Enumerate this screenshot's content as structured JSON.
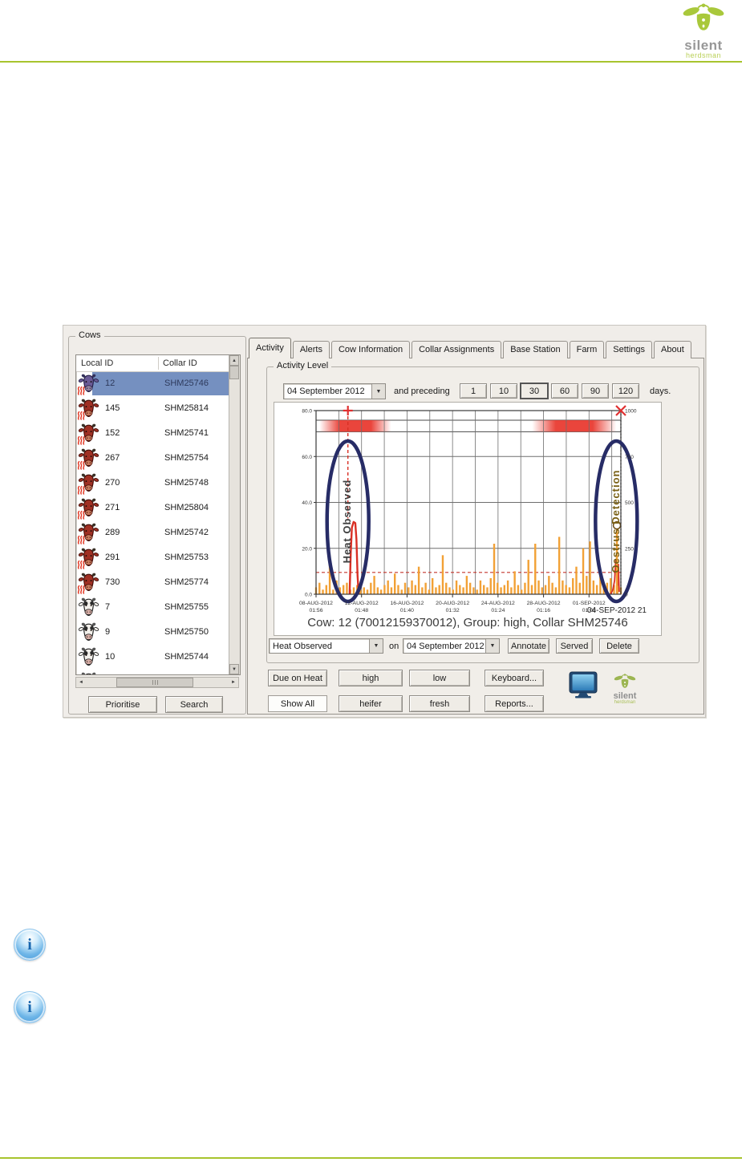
{
  "page": {
    "rule_color": "#a7c42e"
  },
  "logo": {
    "word1": "silent",
    "word2": "herdsman",
    "green": "#a9c83b",
    "gray": "#979797"
  },
  "info_icon": {
    "char": "i"
  },
  "icons": {
    "scroll_up": "▲",
    "scroll_down": "▼",
    "scroll_left": "◄",
    "scroll_right": "►",
    "combo_arrow": "▼"
  },
  "cows_panel": {
    "title": "Cows",
    "columns": [
      "Local ID",
      "Collar ID"
    ],
    "rows": [
      {
        "local_id": "12",
        "collar_id": "SHM25746",
        "variant": "purple",
        "hot": true,
        "selected": true
      },
      {
        "local_id": "145",
        "collar_id": "SHM25814",
        "variant": "red",
        "hot": true
      },
      {
        "local_id": "152",
        "collar_id": "SHM25741",
        "variant": "red",
        "hot": true
      },
      {
        "local_id": "267",
        "collar_id": "SHM25754",
        "variant": "red",
        "hot": true
      },
      {
        "local_id": "270",
        "collar_id": "SHM25748",
        "variant": "red",
        "hot": true
      },
      {
        "local_id": "271",
        "collar_id": "SHM25804",
        "variant": "red",
        "hot": true
      },
      {
        "local_id": "289",
        "collar_id": "SHM25742",
        "variant": "red",
        "hot": true
      },
      {
        "local_id": "291",
        "collar_id": "SHM25753",
        "variant": "red",
        "hot": true
      },
      {
        "local_id": "730",
        "collar_id": "SHM25774",
        "variant": "red",
        "hot": true
      },
      {
        "local_id": "7",
        "collar_id": "SHM25755",
        "variant": "white",
        "hot": false
      },
      {
        "local_id": "9",
        "collar_id": "SHM25750",
        "variant": "white",
        "hot": false
      },
      {
        "local_id": "10",
        "collar_id": "SHM25744",
        "variant": "white",
        "hot": false
      },
      {
        "local_id": "",
        "collar_id": "",
        "variant": "white",
        "hot": false,
        "partial": true
      }
    ],
    "buttons": [
      "Prioritise",
      "Search"
    ]
  },
  "tabs": {
    "items": [
      "Activity",
      "Alerts",
      "Cow Information",
      "Collar Assignments",
      "Base Station",
      "Farm",
      "Settings",
      "About"
    ],
    "active": "Activity"
  },
  "activity_panel": {
    "group_title": "Activity Level",
    "date_combo": "04 September 2012",
    "preceding_label": "and preceding",
    "day_buttons": [
      "1",
      "10",
      "30",
      "60",
      "90",
      "120"
    ],
    "selected_day": "30",
    "days_label": "days.",
    "timestamp": "04-SEP-2012 21",
    "caption": "Cow: 12 (70012159370012), Group: high, Collar SHM25746",
    "event_combo": "Heat Observed",
    "on_label": "on",
    "event_date_combo": "04 September 2012",
    "action_buttons": [
      "Annotate",
      "Served",
      "Delete"
    ]
  },
  "filter_buttons": {
    "row1": [
      "Due on Heat",
      "high",
      "low",
      "Keyboard..."
    ],
    "row2": [
      "Show All",
      "heifer",
      "fresh",
      "Reports..."
    ],
    "active": "Show All"
  },
  "chart_data": {
    "type": "bar+line",
    "title": "Cow: 12 (70012159370012), Group: high, Collar SHM25746",
    "x_axis": {
      "days_total": 26.8,
      "ticks": [
        {
          "day": 0,
          "date": "08-AUG-2012",
          "time": "01:56"
        },
        {
          "day": 4,
          "date": "12-AUG-2012",
          "time": "01:48"
        },
        {
          "day": 8,
          "date": "16-AUG-2012",
          "time": "01:40"
        },
        {
          "day": 12,
          "date": "20-AUG-2012",
          "time": "01:32"
        },
        {
          "day": 16,
          "date": "24-AUG-2012",
          "time": "01:24"
        },
        {
          "day": 20,
          "date": "28-AUG-2012",
          "time": "01:16"
        },
        {
          "day": 24,
          "date": "01-SEP-2012",
          "time": "01:08"
        }
      ],
      "end_label": "04-SEP-2012 21"
    },
    "y_left": {
      "min": 0,
      "max": 80,
      "ticks": [
        {
          "v": 0,
          "label": "0.0"
        },
        {
          "v": 20,
          "label": "20.0"
        },
        {
          "v": 40,
          "label": "40.0"
        },
        {
          "v": 60,
          "label": "60.0"
        },
        {
          "v": 80,
          "label": "80.0"
        }
      ]
    },
    "y_right": {
      "ticks": [
        {
          "v": 0,
          "label": "0"
        },
        {
          "v": 20,
          "label": "250"
        },
        {
          "v": 40,
          "label": "500"
        },
        {
          "v": 60,
          "label": "750"
        },
        {
          "v": 80,
          "label": "1000"
        }
      ]
    },
    "threshold": 9.5,
    "grid": {
      "x_step_days": 2,
      "color": "#6e6e6e"
    },
    "bars": {
      "color": "#f2a136",
      "values": [
        3,
        5,
        2,
        4,
        13,
        2,
        6,
        3,
        4,
        5,
        2,
        3,
        4,
        2,
        3,
        2,
        5,
        8,
        3,
        2,
        4,
        6,
        3,
        9,
        4,
        2,
        5,
        3,
        6,
        4,
        12,
        3,
        5,
        2,
        7,
        3,
        4,
        17,
        5,
        3,
        2,
        6,
        4,
        3,
        8,
        5,
        3,
        2,
        6,
        4,
        3,
        7,
        22,
        5,
        3,
        4,
        6,
        3,
        10,
        4,
        2,
        5,
        15,
        4,
        22,
        6,
        3,
        4,
        8,
        5,
        3,
        25,
        6,
        4,
        3,
        7,
        12,
        5,
        20,
        8,
        23,
        6,
        4,
        9,
        3,
        5,
        7,
        4,
        6,
        3
      ]
    },
    "alert_band": {
      "y_low": 70.8,
      "y_high": 75.8,
      "color": "#e8352b",
      "segments": [
        {
          "from": 0.3,
          "to": 6.6
        },
        {
          "from": 19.0,
          "to": 26.4
        }
      ]
    },
    "heat_line": {
      "color": "#d93025",
      "points": [
        [
          2.95,
          0
        ],
        [
          3.05,
          18
        ],
        [
          3.15,
          29
        ],
        [
          3.3,
          31.5
        ],
        [
          3.45,
          31
        ],
        [
          3.55,
          24
        ],
        [
          3.65,
          8
        ],
        [
          3.75,
          0
        ]
      ]
    },
    "oestrus_line": {
      "color": "#d93025",
      "points": [
        [
          25.9,
          0
        ],
        [
          26.1,
          2
        ],
        [
          26.25,
          6
        ],
        [
          26.35,
          15
        ],
        [
          26.45,
          9
        ],
        [
          26.52,
          4
        ],
        [
          26.58,
          13
        ],
        [
          26.65,
          1
        ]
      ]
    },
    "oestrus_spike": {
      "day": 26.45,
      "value": 28.5,
      "marker_value": 30,
      "color": "#f2a136",
      "marker_color": "#6b4a12"
    },
    "markers": {
      "plus": {
        "day": 2.8,
        "color": "#e03030"
      },
      "cross": {
        "day": 26.8,
        "color": "#e03030"
      },
      "red_dashed_vline": {
        "day": 2.8,
        "from": 33,
        "to": 80
      },
      "dotted_vline": {
        "day": 26.8
      }
    },
    "ellipse_color": "#272c66",
    "annotations": [
      {
        "label": "Heat Observed",
        "day": 2.8,
        "text_color": "#3f3f3f"
      },
      {
        "label": "Oestrus Detection",
        "day": 26.4,
        "text_color": "#7a6015"
      }
    ]
  }
}
